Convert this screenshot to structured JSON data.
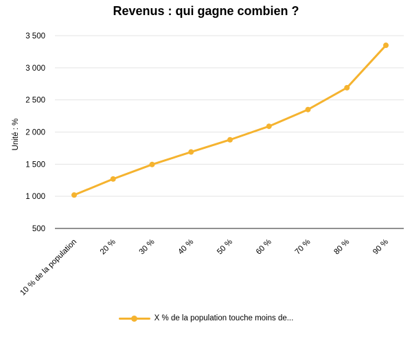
{
  "chart_data": {
    "type": "line",
    "title": "Revenus : qui gagne combien ?",
    "xlabel": "",
    "ylabel": "Unité : %",
    "categories": [
      "10 % de la population",
      "20 %",
      "30 %",
      "40 %",
      "50 %",
      "60 %",
      "70 %",
      "80 %",
      "90 %"
    ],
    "series": [
      {
        "name": "X % de la population touche moins de...",
        "values": [
          1020,
          1270,
          1495,
          1690,
          1880,
          2090,
          2350,
          2690,
          3350
        ],
        "color": "#F5B32F"
      }
    ],
    "ylim": [
      500,
      3500
    ],
    "yticks": [
      500,
      1000,
      1500,
      2000,
      2500,
      3000,
      3500
    ],
    "ytick_labels": [
      "500",
      "1 000",
      "1 500",
      "2 000",
      "2 500",
      "3 000",
      "3 500"
    ],
    "grid": true,
    "legend_position": "bottom"
  }
}
